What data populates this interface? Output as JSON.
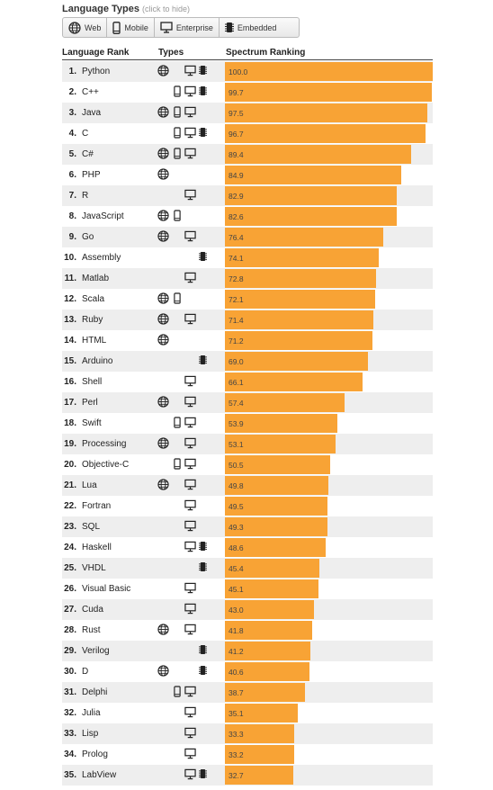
{
  "filters": {
    "title": "Language Types",
    "hint": "(click to hide)",
    "buttons": [
      {
        "label": "Web",
        "icon": "web"
      },
      {
        "label": "Mobile",
        "icon": "mobile"
      },
      {
        "label": "Enterprise",
        "icon": "enterprise"
      },
      {
        "label": "Embedded",
        "icon": "embedded"
      }
    ]
  },
  "columns": {
    "rank": "Language Rank",
    "types": "Types",
    "score": "Spectrum Ranking"
  },
  "bar_color": "#f8a335",
  "languages": [
    {
      "rank": "1.",
      "name": "Python",
      "score": "100.0",
      "types": [
        "web",
        "enterprise",
        "embedded"
      ]
    },
    {
      "rank": "2.",
      "name": "C++",
      "score": "99.7",
      "types": [
        "mobile",
        "enterprise",
        "embedded"
      ]
    },
    {
      "rank": "3.",
      "name": "Java",
      "score": "97.5",
      "types": [
        "web",
        "mobile",
        "enterprise"
      ]
    },
    {
      "rank": "4.",
      "name": "C",
      "score": "96.7",
      "types": [
        "mobile",
        "enterprise",
        "embedded"
      ]
    },
    {
      "rank": "5.",
      "name": "C#",
      "score": "89.4",
      "types": [
        "web",
        "mobile",
        "enterprise"
      ]
    },
    {
      "rank": "6.",
      "name": "PHP",
      "score": "84.9",
      "types": [
        "web"
      ]
    },
    {
      "rank": "7.",
      "name": "R",
      "score": "82.9",
      "types": [
        "enterprise"
      ]
    },
    {
      "rank": "8.",
      "name": "JavaScript",
      "score": "82.6",
      "types": [
        "web",
        "mobile"
      ]
    },
    {
      "rank": "9.",
      "name": "Go",
      "score": "76.4",
      "types": [
        "web",
        "enterprise"
      ]
    },
    {
      "rank": "10.",
      "name": "Assembly",
      "score": "74.1",
      "types": [
        "embedded"
      ]
    },
    {
      "rank": "11.",
      "name": "Matlab",
      "score": "72.8",
      "types": [
        "enterprise"
      ]
    },
    {
      "rank": "12.",
      "name": "Scala",
      "score": "72.1",
      "types": [
        "web",
        "mobile"
      ]
    },
    {
      "rank": "13.",
      "name": "Ruby",
      "score": "71.4",
      "types": [
        "web",
        "enterprise"
      ]
    },
    {
      "rank": "14.",
      "name": "HTML",
      "score": "71.2",
      "types": [
        "web"
      ]
    },
    {
      "rank": "15.",
      "name": "Arduino",
      "score": "69.0",
      "types": [
        "embedded"
      ]
    },
    {
      "rank": "16.",
      "name": "Shell",
      "score": "66.1",
      "types": [
        "enterprise"
      ]
    },
    {
      "rank": "17.",
      "name": "Perl",
      "score": "57.4",
      "types": [
        "web",
        "enterprise"
      ]
    },
    {
      "rank": "18.",
      "name": "Swift",
      "score": "53.9",
      "types": [
        "mobile",
        "enterprise"
      ]
    },
    {
      "rank": "19.",
      "name": "Processing",
      "score": "53.1",
      "types": [
        "web",
        "enterprise"
      ]
    },
    {
      "rank": "20.",
      "name": "Objective-C",
      "score": "50.5",
      "types": [
        "mobile",
        "enterprise"
      ]
    },
    {
      "rank": "21.",
      "name": "Lua",
      "score": "49.8",
      "types": [
        "web",
        "enterprise"
      ]
    },
    {
      "rank": "22.",
      "name": "Fortran",
      "score": "49.5",
      "types": [
        "enterprise"
      ]
    },
    {
      "rank": "23.",
      "name": "SQL",
      "score": "49.3",
      "types": [
        "enterprise"
      ]
    },
    {
      "rank": "24.",
      "name": "Haskell",
      "score": "48.6",
      "types": [
        "enterprise",
        "embedded"
      ]
    },
    {
      "rank": "25.",
      "name": "VHDL",
      "score": "45.4",
      "types": [
        "embedded"
      ]
    },
    {
      "rank": "26.",
      "name": "Visual Basic",
      "score": "45.1",
      "types": [
        "enterprise"
      ]
    },
    {
      "rank": "27.",
      "name": "Cuda",
      "score": "43.0",
      "types": [
        "enterprise"
      ]
    },
    {
      "rank": "28.",
      "name": "Rust",
      "score": "41.8",
      "types": [
        "web",
        "enterprise"
      ]
    },
    {
      "rank": "29.",
      "name": "Verilog",
      "score": "41.2",
      "types": [
        "embedded"
      ]
    },
    {
      "rank": "30.",
      "name": "D",
      "score": "40.6",
      "types": [
        "web",
        "embedded"
      ]
    },
    {
      "rank": "31.",
      "name": "Delphi",
      "score": "38.7",
      "types": [
        "mobile",
        "enterprise"
      ]
    },
    {
      "rank": "32.",
      "name": "Julia",
      "score": "35.1",
      "types": [
        "enterprise"
      ]
    },
    {
      "rank": "33.",
      "name": "Lisp",
      "score": "33.3",
      "types": [
        "enterprise"
      ]
    },
    {
      "rank": "34.",
      "name": "Prolog",
      "score": "33.2",
      "types": [
        "enterprise"
      ]
    },
    {
      "rank": "35.",
      "name": "LabView",
      "score": "32.7",
      "types": [
        "enterprise",
        "embedded"
      ]
    }
  ]
}
